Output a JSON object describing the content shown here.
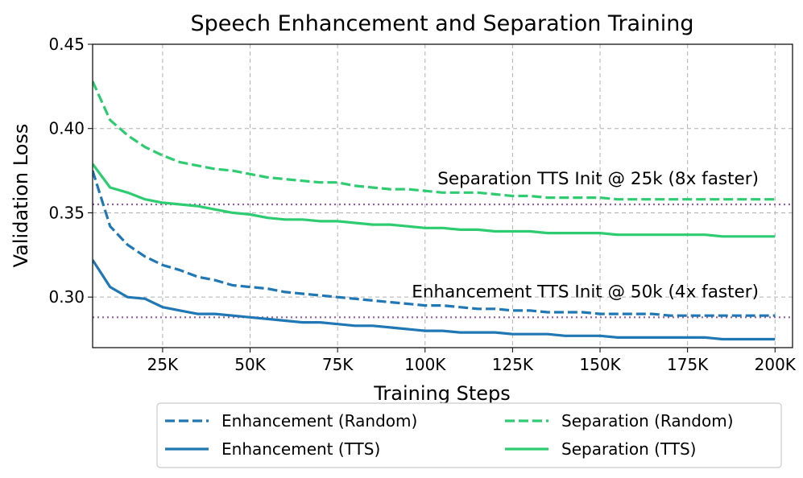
{
  "chart_data": {
    "type": "line",
    "title": "Speech Enhancement and Separation Training",
    "xlabel": "Training Steps",
    "ylabel": "Validation Loss",
    "xlim": [
      5000,
      205000
    ],
    "ylim": [
      0.27,
      0.45
    ],
    "grid": true,
    "x_ticks": [
      {
        "value": 25000,
        "label": "25K"
      },
      {
        "value": 50000,
        "label": "50K"
      },
      {
        "value": 75000,
        "label": "75K"
      },
      {
        "value": 100000,
        "label": "100K"
      },
      {
        "value": 125000,
        "label": "125K"
      },
      {
        "value": 150000,
        "label": "150K"
      },
      {
        "value": 175000,
        "label": "175K"
      },
      {
        "value": 200000,
        "label": "200K"
      }
    ],
    "y_ticks": [
      {
        "value": 0.3,
        "label": "0.30"
      },
      {
        "value": 0.35,
        "label": "0.35"
      },
      {
        "value": 0.4,
        "label": "0.40"
      },
      {
        "value": 0.45,
        "label": "0.45"
      }
    ],
    "x": [
      5000,
      10000,
      15000,
      20000,
      25000,
      30000,
      35000,
      40000,
      45000,
      50000,
      55000,
      60000,
      65000,
      70000,
      75000,
      80000,
      85000,
      90000,
      95000,
      100000,
      105000,
      110000,
      115000,
      120000,
      125000,
      130000,
      135000,
      140000,
      145000,
      150000,
      155000,
      160000,
      165000,
      170000,
      175000,
      180000,
      185000,
      190000,
      195000,
      200000
    ],
    "series": [
      {
        "name": "Enhancement (Random)",
        "color": "#1f77b4",
        "dash": "dashed",
        "values": [
          0.375,
          0.342,
          0.331,
          0.324,
          0.319,
          0.316,
          0.312,
          0.31,
          0.307,
          0.306,
          0.305,
          0.303,
          0.302,
          0.301,
          0.3,
          0.299,
          0.298,
          0.297,
          0.296,
          0.295,
          0.295,
          0.294,
          0.293,
          0.293,
          0.292,
          0.292,
          0.291,
          0.291,
          0.291,
          0.29,
          0.29,
          0.29,
          0.29,
          0.289,
          0.289,
          0.289,
          0.289,
          0.289,
          0.289,
          0.289
        ]
      },
      {
        "name": "Enhancement (TTS)",
        "color": "#1f77b4",
        "dash": "solid",
        "values": [
          0.322,
          0.306,
          0.3,
          0.299,
          0.294,
          0.292,
          0.29,
          0.29,
          0.289,
          0.288,
          0.287,
          0.286,
          0.285,
          0.285,
          0.284,
          0.283,
          0.283,
          0.282,
          0.281,
          0.28,
          0.28,
          0.279,
          0.279,
          0.279,
          0.278,
          0.278,
          0.278,
          0.277,
          0.277,
          0.277,
          0.276,
          0.276,
          0.276,
          0.276,
          0.276,
          0.276,
          0.275,
          0.275,
          0.275,
          0.275
        ]
      },
      {
        "name": "Separation (Random)",
        "color": "#2ecc71",
        "dash": "dashed",
        "values": [
          0.428,
          0.405,
          0.396,
          0.389,
          0.384,
          0.38,
          0.378,
          0.376,
          0.375,
          0.373,
          0.371,
          0.37,
          0.369,
          0.368,
          0.368,
          0.366,
          0.365,
          0.364,
          0.364,
          0.363,
          0.362,
          0.362,
          0.362,
          0.361,
          0.36,
          0.36,
          0.359,
          0.359,
          0.359,
          0.359,
          0.358,
          0.358,
          0.358,
          0.358,
          0.358,
          0.358,
          0.358,
          0.358,
          0.358,
          0.358
        ]
      },
      {
        "name": "Separation (TTS)",
        "color": "#2ecc71",
        "dash": "solid",
        "values": [
          0.379,
          0.365,
          0.362,
          0.358,
          0.356,
          0.355,
          0.354,
          0.352,
          0.35,
          0.349,
          0.347,
          0.346,
          0.346,
          0.345,
          0.345,
          0.344,
          0.343,
          0.343,
          0.342,
          0.341,
          0.341,
          0.34,
          0.34,
          0.339,
          0.339,
          0.339,
          0.338,
          0.338,
          0.338,
          0.338,
          0.337,
          0.337,
          0.337,
          0.337,
          0.337,
          0.337,
          0.336,
          0.336,
          0.336,
          0.336
        ]
      }
    ],
    "reference_lines": [
      {
        "y": 0.355,
        "color": "#9b59b6",
        "label": "Separation TTS Init @ 25k (8x faster)"
      },
      {
        "y": 0.288,
        "color": "#9b59b6",
        "label": "Enhancement TTS Init @ 50k (4x faster)"
      }
    ],
    "legend": {
      "placement": "bottom-center",
      "entries": [
        "Enhancement (Random)",
        "Separation (Random)",
        "Enhancement (TTS)",
        "Separation (TTS)"
      ]
    }
  }
}
